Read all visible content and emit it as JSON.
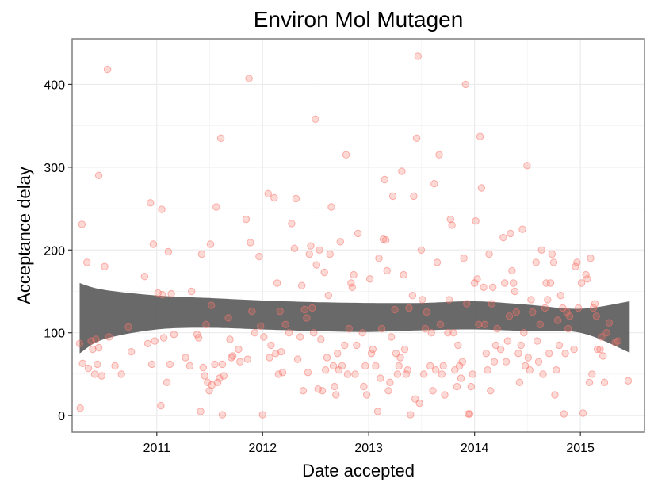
{
  "chart_data": {
    "type": "scatter",
    "title": "Environ Mol Mutagen",
    "xlabel": "Date accepted",
    "ylabel": "Acceptance delay",
    "x_ticks": [
      "2011",
      "2012",
      "2013",
      "2014",
      "2015"
    ],
    "y_ticks": [
      0,
      100,
      200,
      300,
      400
    ],
    "xlim": [
      "2010-03-15",
      "2015-08-10"
    ],
    "ylim": [
      -20,
      455
    ],
    "grid": true,
    "point_color": "#f8766d",
    "band_color": "#595959",
    "smooth": {
      "x": [
        "2010-04-10",
        "2010-07-01",
        "2011-01-01",
        "2011-07-01",
        "2012-01-01",
        "2012-07-01",
        "2013-01-01",
        "2013-07-01",
        "2014-01-01",
        "2014-07-01",
        "2015-01-01",
        "2015-06-20"
      ],
      "lower": [
        75,
        92,
        104,
        106,
        104,
        102,
        101,
        103,
        104,
        102,
        100,
        76
      ],
      "upper": [
        160,
        152,
        145,
        142,
        139,
        137,
        136,
        136,
        138,
        134,
        129,
        138
      ]
    },
    "points": [
      [
        "2010-04-10",
        87
      ],
      [
        "2010-04-12",
        9
      ],
      [
        "2010-04-18",
        231
      ],
      [
        "2010-04-20",
        63
      ],
      [
        "2010-05-05",
        185
      ],
      [
        "2010-05-10",
        57
      ],
      [
        "2010-05-20",
        90
      ],
      [
        "2010-05-25",
        80
      ],
      [
        "2010-06-01",
        50
      ],
      [
        "2010-06-05",
        92
      ],
      [
        "2010-06-10",
        62
      ],
      [
        "2010-06-15",
        82
      ],
      [
        "2010-06-15",
        290
      ],
      [
        "2010-06-25",
        48
      ],
      [
        "2010-07-05",
        180
      ],
      [
        "2010-07-15",
        418
      ],
      [
        "2010-07-20",
        95
      ],
      [
        "2010-08-10",
        60
      ],
      [
        "2010-09-01",
        50
      ],
      [
        "2010-09-25",
        107
      ],
      [
        "2010-10-05",
        77
      ],
      [
        "2010-11-20",
        168
      ],
      [
        "2010-12-01",
        87
      ],
      [
        "2010-12-10",
        257
      ],
      [
        "2010-12-15",
        62
      ],
      [
        "2010-12-20",
        207
      ],
      [
        "2010-12-25",
        90
      ],
      [
        "2011-01-05",
        148
      ],
      [
        "2011-01-15",
        12
      ],
      [
        "2011-01-18",
        249
      ],
      [
        "2011-01-20",
        146
      ],
      [
        "2011-01-25",
        94
      ],
      [
        "2011-02-05",
        40
      ],
      [
        "2011-02-10",
        198
      ],
      [
        "2011-02-15",
        62
      ],
      [
        "2011-02-20",
        147
      ],
      [
        "2011-03-01",
        98
      ],
      [
        "2011-04-10",
        70
      ],
      [
        "2011-04-25",
        60
      ],
      [
        "2011-05-01",
        150
      ],
      [
        "2011-05-20",
        98
      ],
      [
        "2011-05-25",
        94
      ],
      [
        "2011-06-01",
        5
      ],
      [
        "2011-06-05",
        195
      ],
      [
        "2011-06-10",
        58
      ],
      [
        "2011-06-15",
        48
      ],
      [
        "2011-06-20",
        110
      ],
      [
        "2011-06-25",
        40
      ],
      [
        "2011-07-01",
        30
      ],
      [
        "2011-07-05",
        207
      ],
      [
        "2011-07-08",
        133
      ],
      [
        "2011-07-10",
        37
      ],
      [
        "2011-07-20",
        62
      ],
      [
        "2011-07-25",
        252
      ],
      [
        "2011-07-30",
        40
      ],
      [
        "2011-08-05",
        45
      ],
      [
        "2011-08-10",
        335
      ],
      [
        "2011-08-15",
        62
      ],
      [
        "2011-08-15",
        1
      ],
      [
        "2011-08-20",
        48
      ],
      [
        "2011-09-05",
        118
      ],
      [
        "2011-09-10",
        92
      ],
      [
        "2011-09-15",
        70
      ],
      [
        "2011-09-20",
        72
      ],
      [
        "2011-10-10",
        80
      ],
      [
        "2011-10-15",
        65
      ],
      [
        "2011-11-05",
        237
      ],
      [
        "2011-11-10",
        68
      ],
      [
        "2011-11-15",
        407
      ],
      [
        "2011-11-20",
        209
      ],
      [
        "2011-11-25",
        126
      ],
      [
        "2011-12-05",
        100
      ],
      [
        "2011-12-20",
        192
      ],
      [
        "2011-12-25",
        108
      ],
      [
        "2012-01-01",
        1
      ],
      [
        "2012-01-05",
        95
      ],
      [
        "2012-01-20",
        268
      ],
      [
        "2012-01-25",
        70
      ],
      [
        "2012-01-30",
        85
      ],
      [
        "2012-02-10",
        263
      ],
      [
        "2012-02-15",
        75
      ],
      [
        "2012-02-20",
        160
      ],
      [
        "2012-02-25",
        50
      ],
      [
        "2012-03-01",
        126
      ],
      [
        "2012-03-05",
        77
      ],
      [
        "2012-03-10",
        52
      ],
      [
        "2012-03-20",
        110
      ],
      [
        "2012-04-01",
        100
      ],
      [
        "2012-04-10",
        232
      ],
      [
        "2012-04-20",
        202
      ],
      [
        "2012-04-25",
        262
      ],
      [
        "2012-05-01",
        68
      ],
      [
        "2012-05-10",
        95
      ],
      [
        "2012-05-15",
        157
      ],
      [
        "2012-05-20",
        30
      ],
      [
        "2012-05-25",
        128
      ],
      [
        "2012-06-01",
        118
      ],
      [
        "2012-06-05",
        52
      ],
      [
        "2012-06-10",
        195
      ],
      [
        "2012-06-15",
        205
      ],
      [
        "2012-06-20",
        130
      ],
      [
        "2012-06-25",
        100
      ],
      [
        "2012-07-01",
        358
      ],
      [
        "2012-07-05",
        182
      ],
      [
        "2012-07-10",
        32
      ],
      [
        "2012-07-15",
        200
      ],
      [
        "2012-07-20",
        92
      ],
      [
        "2012-07-25",
        30
      ],
      [
        "2012-08-01",
        173
      ],
      [
        "2012-08-05",
        55
      ],
      [
        "2012-08-10",
        70
      ],
      [
        "2012-08-15",
        145
      ],
      [
        "2012-08-20",
        195
      ],
      [
        "2012-08-25",
        252
      ],
      [
        "2012-09-01",
        60
      ],
      [
        "2012-09-05",
        35
      ],
      [
        "2012-09-10",
        25
      ],
      [
        "2012-09-15",
        75
      ],
      [
        "2012-09-20",
        55
      ],
      [
        "2012-09-25",
        210
      ],
      [
        "2012-10-01",
        60
      ],
      [
        "2012-10-10",
        85
      ],
      [
        "2012-10-15",
        315
      ],
      [
        "2012-10-20",
        50
      ],
      [
        "2012-10-25",
        105
      ],
      [
        "2012-11-01",
        160
      ],
      [
        "2012-11-05",
        155
      ],
      [
        "2012-11-10",
        170
      ],
      [
        "2012-11-15",
        50
      ],
      [
        "2012-11-20",
        85
      ],
      [
        "2012-11-25",
        220
      ],
      [
        "2012-12-10",
        100
      ],
      [
        "2012-12-15",
        35
      ],
      [
        "2012-12-20",
        60
      ],
      [
        "2012-12-25",
        25
      ],
      [
        "2013-01-05",
        165
      ],
      [
        "2013-01-10",
        75
      ],
      [
        "2013-01-15",
        80
      ],
      [
        "2013-01-25",
        60
      ],
      [
        "2013-02-01",
        5
      ],
      [
        "2013-02-05",
        190
      ],
      [
        "2013-02-10",
        45
      ],
      [
        "2013-02-15",
        105
      ],
      [
        "2013-02-20",
        213
      ],
      [
        "2013-02-25",
        285
      ],
      [
        "2013-03-01",
        212
      ],
      [
        "2013-03-05",
        175
      ],
      [
        "2013-03-10",
        30
      ],
      [
        "2013-03-15",
        40
      ],
      [
        "2013-03-20",
        95
      ],
      [
        "2013-03-25",
        265
      ],
      [
        "2013-04-01",
        128
      ],
      [
        "2013-04-05",
        75
      ],
      [
        "2013-04-10",
        50
      ],
      [
        "2013-04-15",
        60
      ],
      [
        "2013-04-20",
        70
      ],
      [
        "2013-04-25",
        295
      ],
      [
        "2013-05-01",
        170
      ],
      [
        "2013-05-05",
        80
      ],
      [
        "2013-05-10",
        50
      ],
      [
        "2013-05-15",
        55
      ],
      [
        "2013-05-20",
        130
      ],
      [
        "2013-05-25",
        1
      ],
      [
        "2013-06-01",
        145
      ],
      [
        "2013-06-05",
        265
      ],
      [
        "2013-06-10",
        20
      ],
      [
        "2013-06-15",
        335
      ],
      [
        "2013-06-20",
        434
      ],
      [
        "2013-06-25",
        15
      ],
      [
        "2013-07-01",
        200
      ],
      [
        "2013-07-05",
        140
      ],
      [
        "2013-07-10",
        50
      ],
      [
        "2013-07-15",
        105
      ],
      [
        "2013-07-20",
        125
      ],
      [
        "2013-08-01",
        60
      ],
      [
        "2013-08-05",
        100
      ],
      [
        "2013-08-10",
        30
      ],
      [
        "2013-08-15",
        280
      ],
      [
        "2013-08-20",
        55
      ],
      [
        "2013-08-25",
        185
      ],
      [
        "2013-09-01",
        315
      ],
      [
        "2013-09-05",
        110
      ],
      [
        "2013-09-10",
        50
      ],
      [
        "2013-09-15",
        60
      ],
      [
        "2013-09-20",
        25
      ],
      [
        "2013-10-01",
        100
      ],
      [
        "2013-10-05",
        140
      ],
      [
        "2013-10-10",
        237
      ],
      [
        "2013-10-15",
        230
      ],
      [
        "2013-10-20",
        100
      ],
      [
        "2013-10-25",
        55
      ],
      [
        "2013-11-01",
        35
      ],
      [
        "2013-11-05",
        85
      ],
      [
        "2013-11-10",
        60
      ],
      [
        "2013-11-15",
        45
      ],
      [
        "2013-11-20",
        65
      ],
      [
        "2013-11-25",
        190
      ],
      [
        "2013-12-01",
        400
      ],
      [
        "2013-12-05",
        135
      ],
      [
        "2013-12-10",
        2
      ],
      [
        "2013-12-15",
        2
      ],
      [
        "2013-12-20",
        35
      ],
      [
        "2013-12-25",
        50
      ],
      [
        "2014-01-01",
        160
      ],
      [
        "2014-01-05",
        235
      ],
      [
        "2014-01-10",
        165
      ],
      [
        "2014-01-15",
        110
      ],
      [
        "2014-01-20",
        337
      ],
      [
        "2014-01-25",
        275
      ],
      [
        "2014-02-01",
        155
      ],
      [
        "2014-02-05",
        110
      ],
      [
        "2014-02-10",
        75
      ],
      [
        "2014-02-15",
        55
      ],
      [
        "2014-02-20",
        195
      ],
      [
        "2014-02-25",
        30
      ],
      [
        "2014-03-01",
        135
      ],
      [
        "2014-03-05",
        155
      ],
      [
        "2014-03-10",
        65
      ],
      [
        "2014-03-15",
        85
      ],
      [
        "2014-03-20",
        105
      ],
      [
        "2014-04-01",
        80
      ],
      [
        "2014-04-10",
        215
      ],
      [
        "2014-04-15",
        160
      ],
      [
        "2014-04-20",
        65
      ],
      [
        "2014-04-25",
        90
      ],
      [
        "2014-05-01",
        120
      ],
      [
        "2014-05-05",
        220
      ],
      [
        "2014-05-10",
        175
      ],
      [
        "2014-05-15",
        160
      ],
      [
        "2014-05-20",
        150
      ],
      [
        "2014-05-25",
        125
      ],
      [
        "2014-06-01",
        75
      ],
      [
        "2014-06-05",
        40
      ],
      [
        "2014-06-10",
        85
      ],
      [
        "2014-06-15",
        225
      ],
      [
        "2014-06-20",
        100
      ],
      [
        "2014-06-25",
        60
      ],
      [
        "2014-07-01",
        302
      ],
      [
        "2014-07-05",
        70
      ],
      [
        "2014-07-10",
        55
      ],
      [
        "2014-07-15",
        140
      ],
      [
        "2014-07-20",
        125
      ],
      [
        "2014-08-01",
        185
      ],
      [
        "2014-08-05",
        90
      ],
      [
        "2014-08-10",
        65
      ],
      [
        "2014-08-15",
        110
      ],
      [
        "2014-08-20",
        200
      ],
      [
        "2014-08-25",
        50
      ],
      [
        "2014-09-01",
        130
      ],
      [
        "2014-09-05",
        160
      ],
      [
        "2014-09-10",
        140
      ],
      [
        "2014-09-15",
        75
      ],
      [
        "2014-09-20",
        160
      ],
      [
        "2014-09-25",
        195
      ],
      [
        "2014-10-01",
        185
      ],
      [
        "2014-10-05",
        25
      ],
      [
        "2014-10-10",
        55
      ],
      [
        "2014-10-15",
        115
      ],
      [
        "2014-10-20",
        85
      ],
      [
        "2014-10-25",
        145
      ],
      [
        "2014-11-01",
        130
      ],
      [
        "2014-11-05",
        2
      ],
      [
        "2014-11-10",
        75
      ],
      [
        "2014-11-15",
        125
      ],
      [
        "2014-11-20",
        105
      ],
      [
        "2014-11-25",
        120
      ],
      [
        "2014-12-10",
        80
      ],
      [
        "2014-12-15",
        180
      ],
      [
        "2014-12-20",
        185
      ],
      [
        "2014-12-25",
        130
      ],
      [
        "2015-01-05",
        160
      ],
      [
        "2015-01-10",
        3
      ],
      [
        "2015-01-20",
        170
      ],
      [
        "2015-01-25",
        165
      ],
      [
        "2015-02-01",
        40
      ],
      [
        "2015-02-05",
        190
      ],
      [
        "2015-02-10",
        50
      ],
      [
        "2015-02-15",
        130
      ],
      [
        "2015-02-20",
        135
      ],
      [
        "2015-02-25",
        120
      ],
      [
        "2015-03-01",
        80
      ],
      [
        "2015-03-10",
        80
      ],
      [
        "2015-03-15",
        95
      ],
      [
        "2015-03-20",
        72
      ],
      [
        "2015-03-25",
        40
      ],
      [
        "2015-04-01",
        100
      ],
      [
        "2015-04-10",
        112
      ],
      [
        "2015-05-01",
        88
      ],
      [
        "2015-05-10",
        90
      ],
      [
        "2015-06-15",
        42
      ]
    ]
  }
}
